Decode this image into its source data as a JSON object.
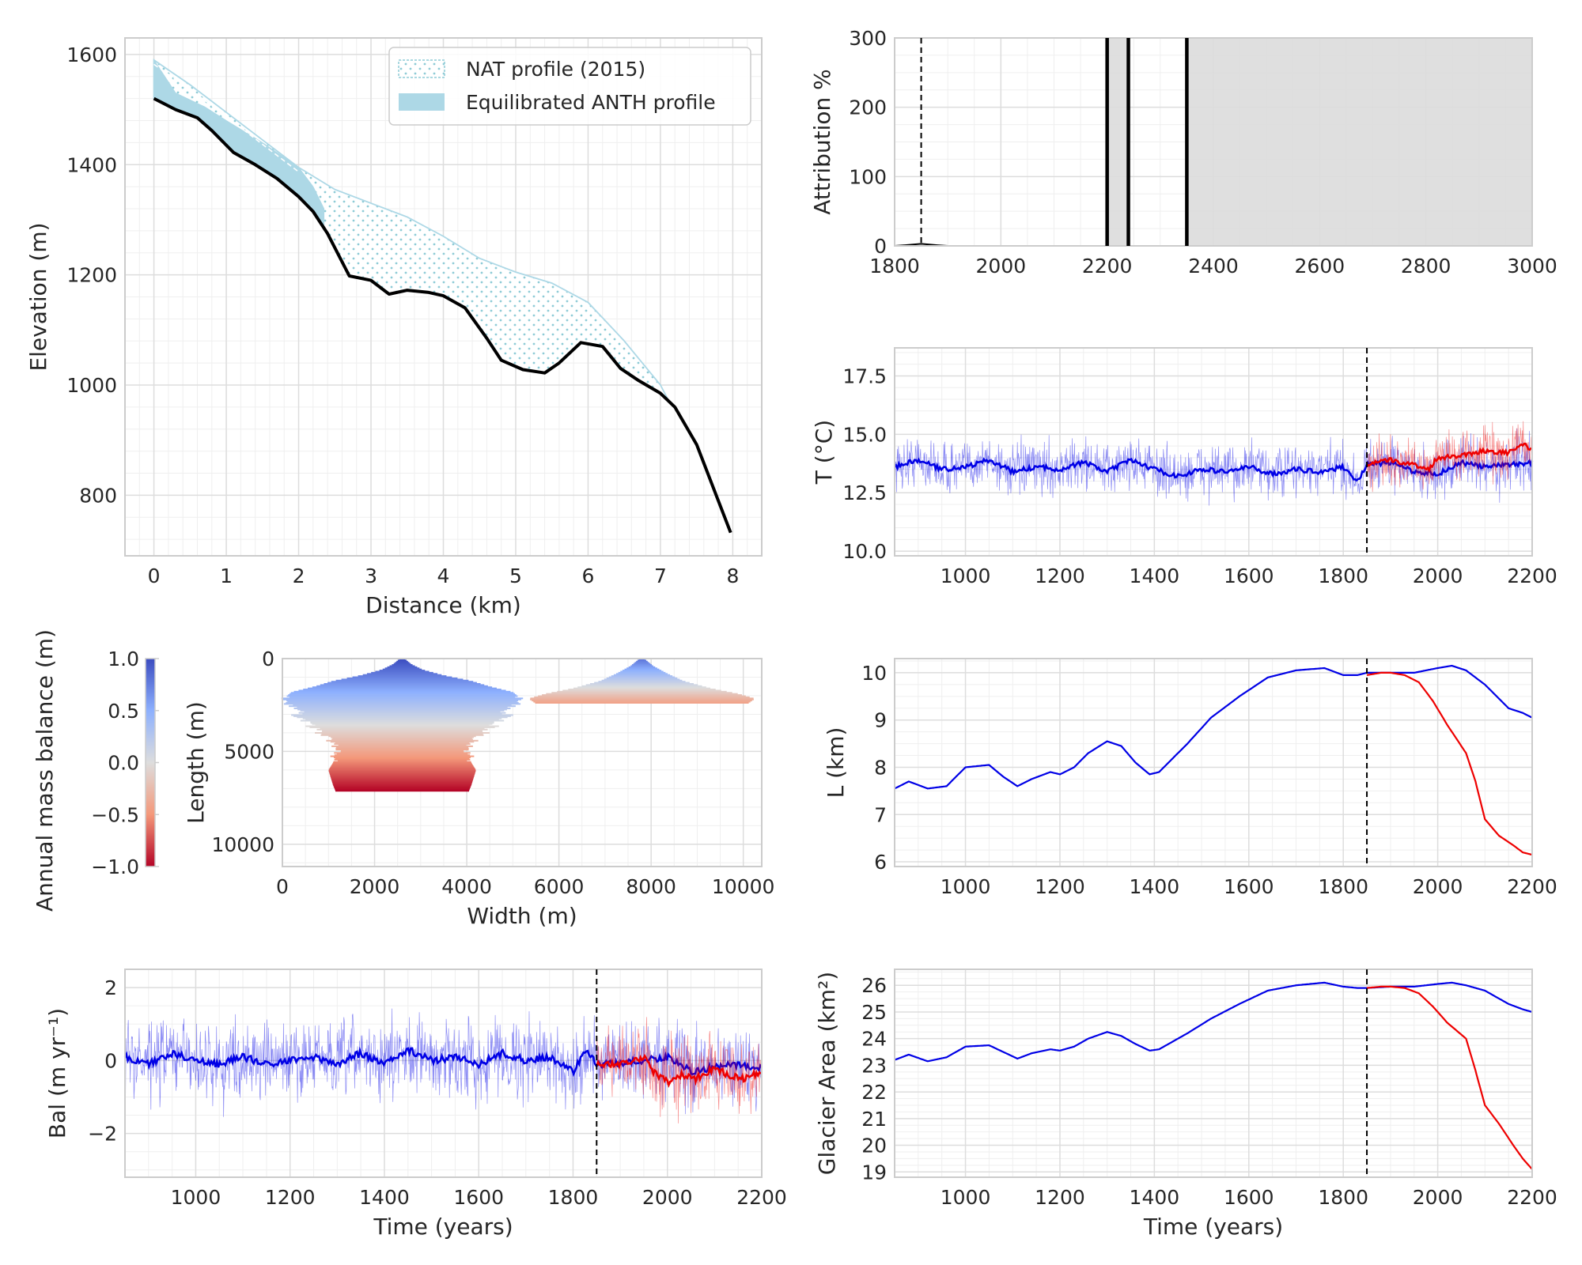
{
  "colors": {
    "natural": "#0000e6",
    "anthropogenic": "#ee0000",
    "profile_fill": "#add8e6",
    "observed": "#000000",
    "attribution_band": "#dcdcdc"
  },
  "chart_data": [
    {
      "id": "profile",
      "type": "area",
      "xlabel": "Distance (km)",
      "ylabel": "Elevation (m)",
      "xlim": [
        -0.4,
        8.4
      ],
      "ylim": [
        690,
        1630
      ],
      "xticks": [
        "0",
        "1",
        "2",
        "3",
        "4",
        "5",
        "6",
        "7",
        "8"
      ],
      "yticks": [
        "800",
        "1000",
        "1200",
        "1400",
        "1600"
      ],
      "grid": true,
      "legend": {
        "position": "top-right",
        "entries": [
          "NAT profile (2015)",
          "Equilibrated ANTH profile"
        ]
      },
      "nat_profile": {
        "x": [
          0,
          0.5,
          1,
          1.5,
          2,
          2.5,
          3,
          3.5,
          4,
          4.5,
          5,
          5.5,
          6,
          6.5,
          7,
          7.1
        ],
        "y": [
          1590,
          1545,
          1495,
          1445,
          1395,
          1355,
          1330,
          1305,
          1270,
          1230,
          1205,
          1185,
          1150,
          1080,
          1000,
          975
        ]
      },
      "anth_profile": {
        "x": [
          0,
          0.3,
          0.7,
          1,
          1.5,
          2,
          2.2,
          2.35
        ],
        "y": [
          1550,
          1530,
          1505,
          1480,
          1440,
          1395,
          1360,
          1320
        ]
      },
      "bed": {
        "x": [
          0,
          0.3,
          0.6,
          0.8,
          1.1,
          1.4,
          1.7,
          2.0,
          2.2,
          2.4,
          2.7,
          3.0,
          3.25,
          3.5,
          3.8,
          4.0,
          4.3,
          4.6,
          4.8,
          5.1,
          5.4,
          5.6,
          5.9,
          6.2,
          6.45,
          6.7,
          7.0,
          7.2,
          7.5,
          7.8,
          7.97
        ],
        "y": [
          1520,
          1500,
          1485,
          1462,
          1422,
          1400,
          1375,
          1342,
          1315,
          1275,
          1198,
          1190,
          1165,
          1172,
          1168,
          1162,
          1140,
          1085,
          1045,
          1028,
          1022,
          1040,
          1077,
          1070,
          1030,
          1008,
          985,
          960,
          892,
          790,
          732
        ]
      }
    },
    {
      "id": "attribution",
      "type": "area",
      "xlabel": "",
      "ylabel": "Attribution %",
      "xlim": [
        1800,
        3000
      ],
      "ylim": [
        0,
        300
      ],
      "xticks": [
        "1800",
        "2000",
        "2200",
        "2400",
        "2600",
        "2800",
        "3000"
      ],
      "yticks": [
        "0",
        "100",
        "200",
        "300"
      ],
      "shaded_bands": [
        [
          2200,
          2240
        ],
        [
          2350,
          3000
        ]
      ],
      "solid_lines_x": [
        2200,
        2240,
        2350
      ],
      "dashed_line_x": 1850,
      "trace": {
        "x": [
          1800,
          1820,
          1850,
          1880,
          1900
        ],
        "y": [
          0,
          1,
          3,
          1,
          0
        ]
      }
    },
    {
      "id": "temperature",
      "type": "line",
      "xlabel": "",
      "ylabel": "T (°C)",
      "xlim": [
        850,
        2200
      ],
      "ylim": [
        9.8,
        18.7
      ],
      "xticks": [
        "1000",
        "1200",
        "1400",
        "1600",
        "1800",
        "2000",
        "2200"
      ],
      "yticks": [
        "10.0",
        "12.5",
        "15.0",
        "17.5"
      ],
      "dashed_line_x": 1850,
      "series": [
        {
          "color": "natural",
          "x": [
            850,
            900,
            950,
            1000,
            1050,
            1100,
            1150,
            1200,
            1250,
            1300,
            1350,
            1400,
            1450,
            1500,
            1550,
            1600,
            1650,
            1700,
            1750,
            1800,
            1830,
            1850,
            1900,
            1950,
            2000,
            2050,
            2100,
            2150,
            2200
          ],
          "y": [
            13.6,
            13.9,
            13.5,
            13.6,
            13.9,
            13.4,
            13.6,
            13.5,
            13.8,
            13.4,
            13.9,
            13.5,
            13.2,
            13.5,
            13.4,
            13.6,
            13.3,
            13.5,
            13.4,
            13.6,
            13.0,
            13.7,
            13.8,
            13.4,
            13.3,
            13.8,
            13.6,
            13.7,
            13.8
          ]
        },
        {
          "color": "anthropogenic",
          "x": [
            1850,
            1900,
            1950,
            1980,
            2000,
            2050,
            2100,
            2150,
            2180,
            2200
          ],
          "y": [
            13.7,
            13.9,
            13.7,
            13.5,
            14.0,
            14.1,
            14.3,
            14.2,
            14.6,
            14.3
          ]
        }
      ],
      "noise": {
        "natural_amp": 1.7,
        "anthropogenic_amp": 1.6
      }
    },
    {
      "id": "mass-balance-map",
      "type": "heatmap",
      "xlabel": "Width (m)",
      "ylabel": "Length (m)",
      "xlim": [
        0,
        10400
      ],
      "ylim": [
        11200,
        0
      ],
      "xticks": [
        "0",
        "2000",
        "4000",
        "6000",
        "8000",
        "10000"
      ],
      "yticks": [
        "0",
        "5000",
        "10000"
      ],
      "colorbar": {
        "label": "Annual mass balance (m)",
        "range": [
          -1.0,
          1.0
        ],
        "ticks": [
          "1.0",
          "0.5",
          "0.0",
          "−0.5",
          "−1.0"
        ]
      },
      "glaciers": [
        {
          "center_x": 2600,
          "profile": [
            [
              0,
              50
            ],
            [
              300,
              200
            ],
            [
              600,
              450
            ],
            [
              900,
              900
            ],
            [
              1200,
              1500
            ],
            [
              1500,
              1900
            ],
            [
              1800,
              2400
            ],
            [
              2100,
              2550
            ],
            [
              2400,
              2500
            ],
            [
              2700,
              2200
            ],
            [
              3000,
              2300
            ],
            [
              3300,
              2150
            ],
            [
              3600,
              2000
            ],
            [
              3900,
              1800
            ],
            [
              4200,
              1700
            ],
            [
              4500,
              1500
            ],
            [
              4800,
              1400
            ],
            [
              5200,
              1450
            ],
            [
              5600,
              1500
            ],
            [
              6000,
              1600
            ],
            [
              6400,
              1550
            ],
            [
              6800,
              1500
            ],
            [
              7100,
              1450
            ]
          ],
          "balance_top": 1.0,
          "balance_bottom": -1.0
        },
        {
          "center_x": 7800,
          "profile": [
            [
              0,
              50
            ],
            [
              400,
              250
            ],
            [
              800,
              550
            ],
            [
              1200,
              900
            ],
            [
              1600,
              1500
            ],
            [
              1900,
              2100
            ],
            [
              2150,
              2450
            ],
            [
              2400,
              2300
            ]
          ],
          "balance_top": 0.8,
          "balance_bottom": -0.45
        }
      ]
    },
    {
      "id": "length",
      "type": "line",
      "xlabel": "",
      "ylabel": "L (km)",
      "xlim": [
        850,
        2200
      ],
      "ylim": [
        5.9,
        10.3
      ],
      "xticks": [
        "1000",
        "1200",
        "1400",
        "1600",
        "1800",
        "2000",
        "2200"
      ],
      "yticks": [
        "6",
        "7",
        "8",
        "9",
        "10"
      ],
      "dashed_line_x": 1850,
      "series": [
        {
          "color": "natural",
          "x": [
            850,
            880,
            920,
            960,
            1000,
            1050,
            1080,
            1110,
            1140,
            1180,
            1200,
            1230,
            1260,
            1300,
            1330,
            1360,
            1390,
            1410,
            1430,
            1470,
            1520,
            1580,
            1640,
            1700,
            1760,
            1800,
            1830,
            1850,
            1900,
            1950,
            2000,
            2030,
            2060,
            2100,
            2150,
            2180,
            2200
          ],
          "y": [
            7.55,
            7.7,
            7.55,
            7.6,
            8.0,
            8.05,
            7.8,
            7.6,
            7.75,
            7.9,
            7.85,
            8.0,
            8.3,
            8.55,
            8.45,
            8.1,
            7.85,
            7.9,
            8.1,
            8.5,
            9.05,
            9.5,
            9.9,
            10.05,
            10.1,
            9.95,
            9.95,
            10.0,
            10.0,
            10.0,
            10.1,
            10.15,
            10.05,
            9.75,
            9.25,
            9.15,
            9.05
          ]
        },
        {
          "color": "anthropogenic",
          "x": [
            1850,
            1880,
            1900,
            1930,
            1960,
            1990,
            2020,
            2060,
            2080,
            2100,
            2130,
            2160,
            2180,
            2200
          ],
          "y": [
            9.95,
            10.0,
            10.0,
            9.95,
            9.8,
            9.4,
            8.9,
            8.3,
            7.7,
            6.9,
            6.55,
            6.35,
            6.2,
            6.15
          ]
        }
      ]
    },
    {
      "id": "balance",
      "type": "line",
      "xlabel": "Time (years)",
      "ylabel": "Bal (m yr⁻¹)",
      "xlim": [
        850,
        2200
      ],
      "ylim": [
        -3.2,
        2.5
      ],
      "xticks": [
        "1000",
        "1200",
        "1400",
        "1600",
        "1800",
        "2000",
        "2200"
      ],
      "yticks": [
        "2",
        "0",
        "−2"
      ],
      "dashed_line_x": 1850,
      "series": [
        {
          "color": "natural",
          "x": [
            850,
            900,
            950,
            1000,
            1050,
            1100,
            1150,
            1200,
            1250,
            1300,
            1350,
            1400,
            1450,
            1500,
            1550,
            1600,
            1650,
            1700,
            1750,
            1800,
            1830,
            1850,
            1900,
            1950,
            2000,
            2050,
            2100,
            2150,
            2200
          ],
          "y": [
            0.1,
            -0.1,
            0.2,
            0.0,
            -0.1,
            0.1,
            -0.1,
            0.0,
            0.1,
            -0.1,
            0.2,
            -0.1,
            0.3,
            0.0,
            0.1,
            -0.1,
            0.2,
            0.0,
            0.1,
            -0.3,
            0.3,
            -0.1,
            -0.1,
            0.0,
            0.1,
            -0.3,
            -0.2,
            -0.1,
            -0.2
          ]
        },
        {
          "color": "anthropogenic",
          "x": [
            1850,
            1900,
            1950,
            1970,
            2000,
            2030,
            2060,
            2100,
            2130,
            2160,
            2200
          ],
          "y": [
            -0.1,
            -0.1,
            0.1,
            -0.3,
            -0.6,
            -0.4,
            -0.5,
            -0.2,
            -0.4,
            -0.5,
            -0.3
          ]
        }
      ],
      "noise": {
        "natural_amp": 1.6,
        "anthropogenic_amp": 1.5
      }
    },
    {
      "id": "area",
      "type": "line",
      "xlabel": "Time (years)",
      "ylabel": "Glacier Area (km²)",
      "xlim": [
        850,
        2200
      ],
      "ylim": [
        18.8,
        26.6
      ],
      "xticks": [
        "1000",
        "1200",
        "1400",
        "1600",
        "1800",
        "2000",
        "2200"
      ],
      "yticks": [
        "19",
        "20",
        "21",
        "22",
        "23",
        "24",
        "25",
        "26"
      ],
      "dashed_line_x": 1850,
      "series": [
        {
          "color": "natural",
          "x": [
            850,
            880,
            920,
            960,
            1000,
            1050,
            1080,
            1110,
            1140,
            1180,
            1200,
            1230,
            1260,
            1300,
            1330,
            1360,
            1390,
            1410,
            1430,
            1470,
            1520,
            1580,
            1640,
            1700,
            1760,
            1800,
            1830,
            1850,
            1900,
            1950,
            2000,
            2030,
            2060,
            2100,
            2150,
            2180,
            2200
          ],
          "y": [
            23.2,
            23.4,
            23.15,
            23.3,
            23.7,
            23.75,
            23.5,
            23.25,
            23.45,
            23.6,
            23.55,
            23.7,
            24.0,
            24.25,
            24.1,
            23.8,
            23.55,
            23.6,
            23.8,
            24.2,
            24.75,
            25.3,
            25.8,
            26.0,
            26.1,
            25.95,
            25.9,
            25.9,
            25.95,
            25.95,
            26.05,
            26.1,
            26.0,
            25.8,
            25.3,
            25.1,
            25.0
          ]
        },
        {
          "color": "anthropogenic",
          "x": [
            1850,
            1880,
            1900,
            1930,
            1960,
            1990,
            2020,
            2060,
            2080,
            2100,
            2130,
            2160,
            2180,
            2200
          ],
          "y": [
            25.9,
            25.95,
            25.95,
            25.9,
            25.7,
            25.2,
            24.6,
            24.0,
            22.8,
            21.5,
            20.8,
            20.0,
            19.5,
            19.1
          ]
        }
      ]
    }
  ]
}
